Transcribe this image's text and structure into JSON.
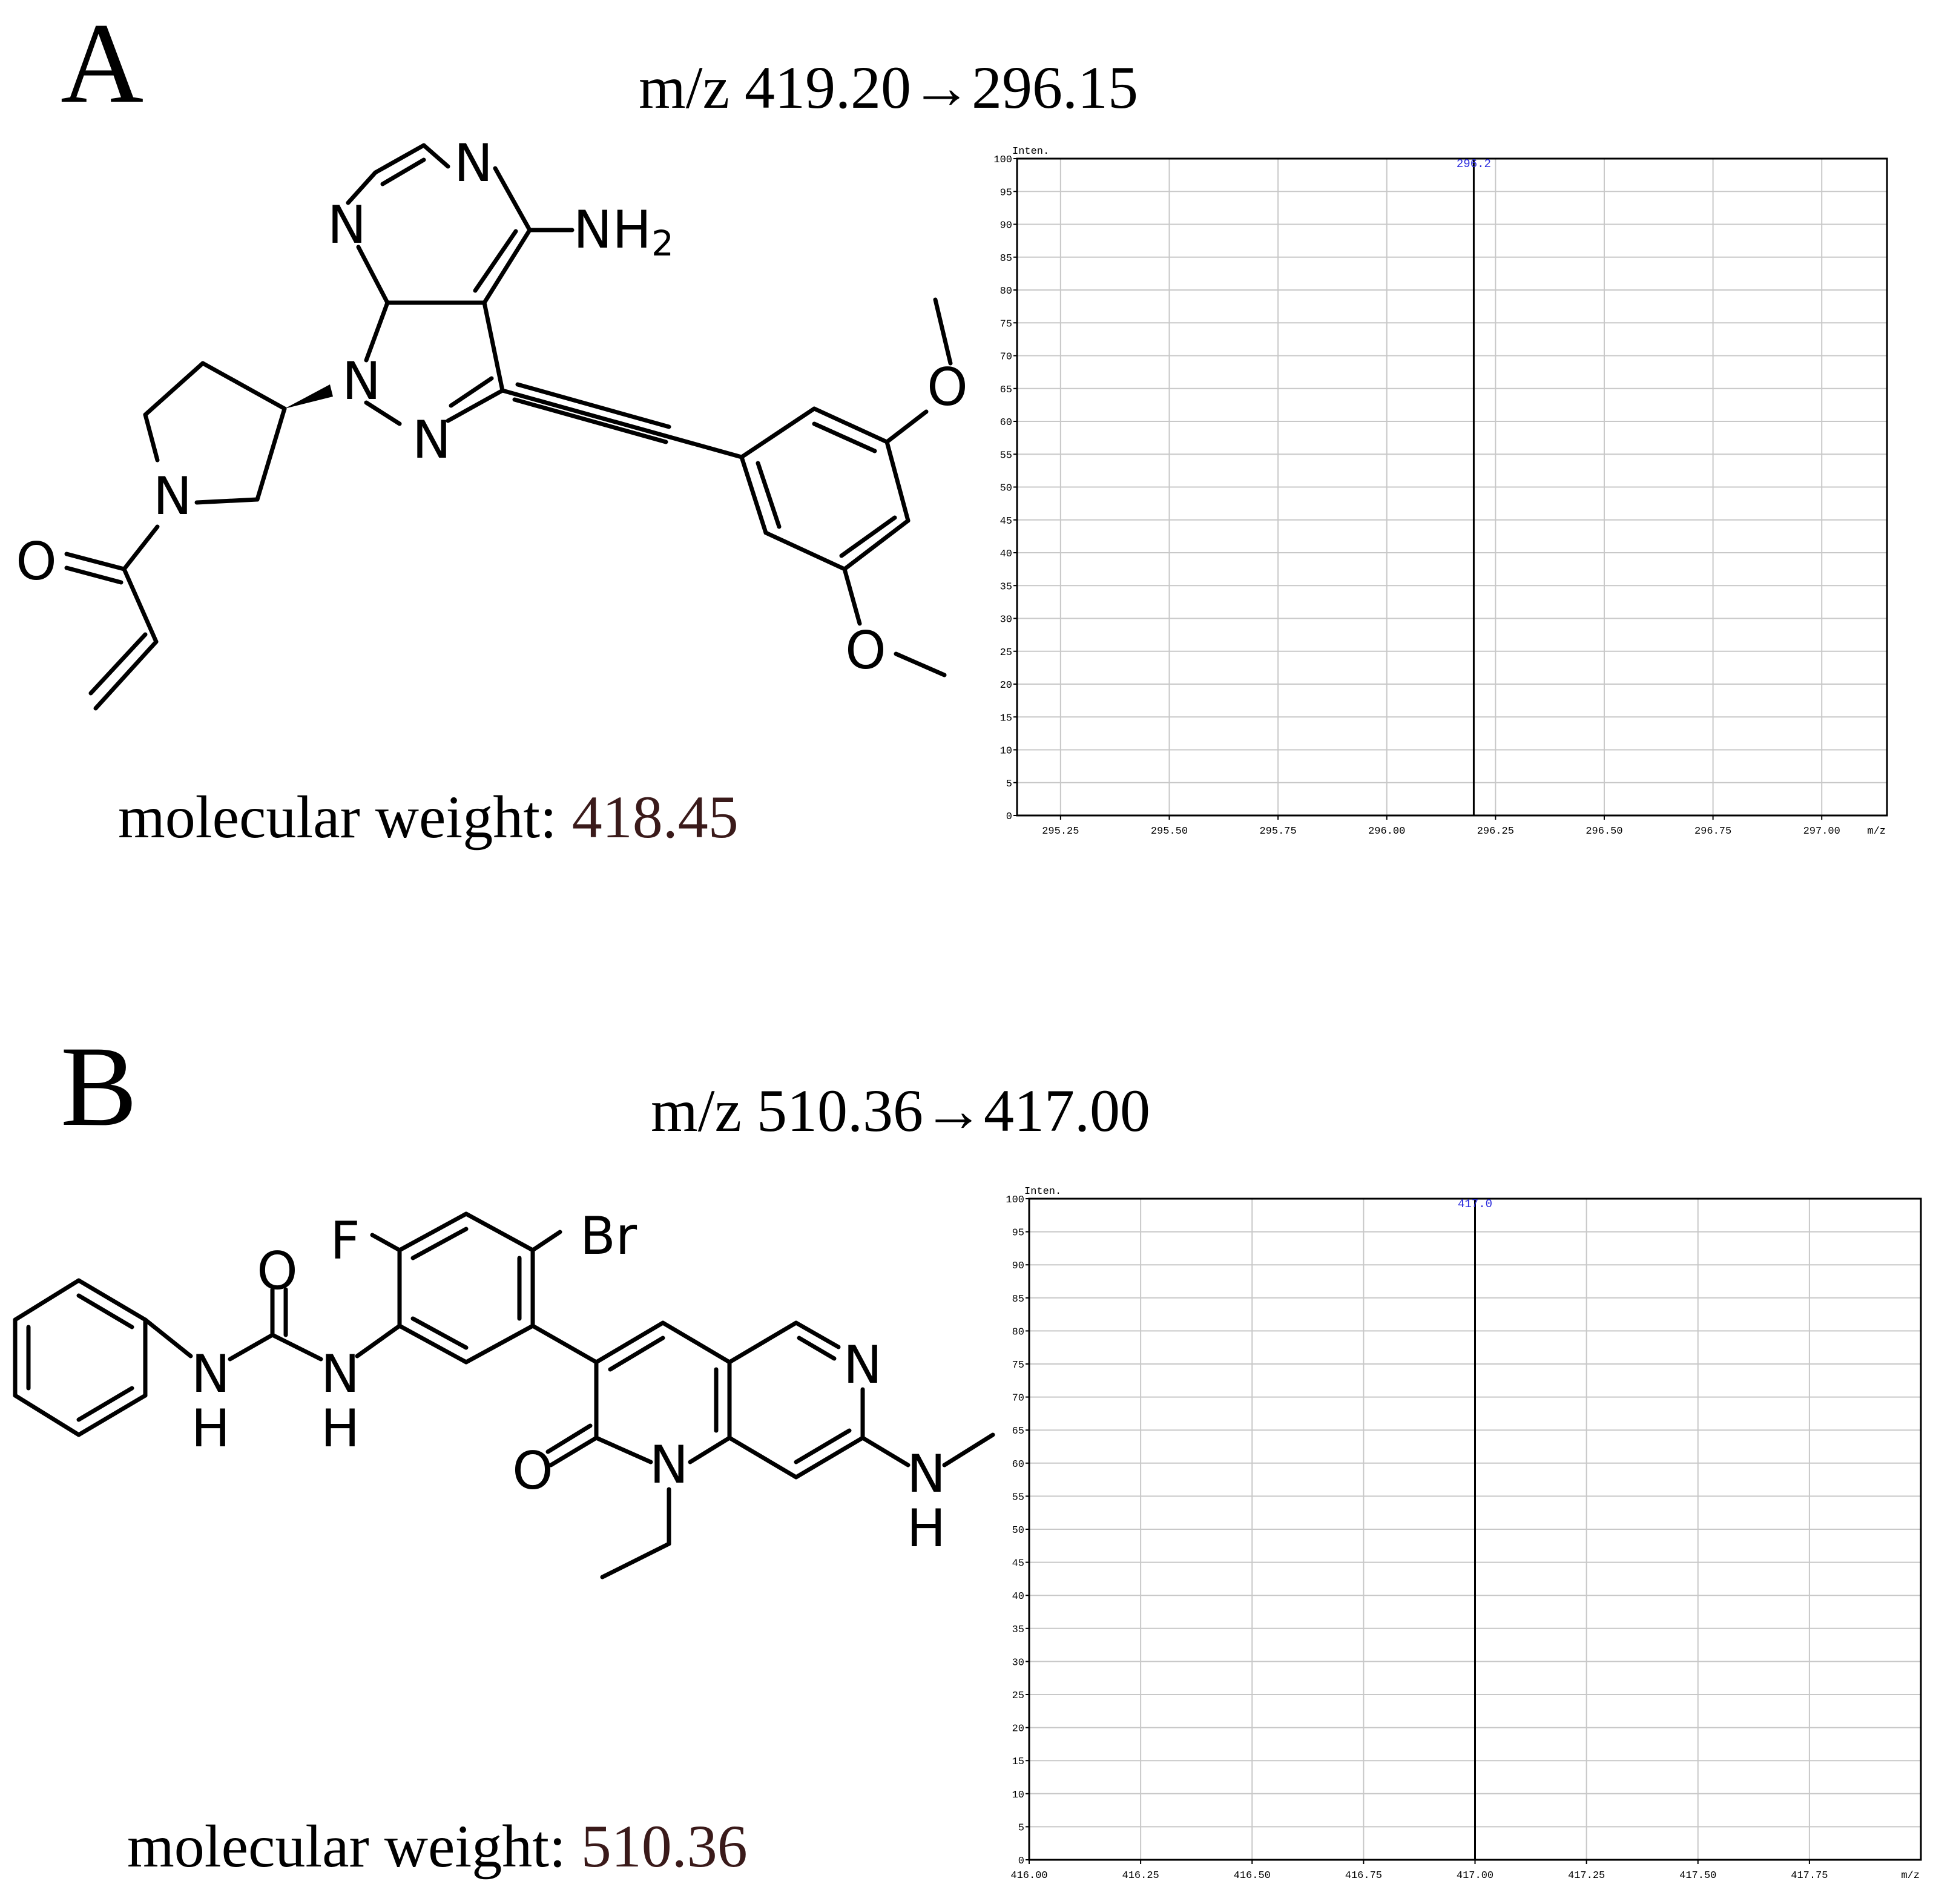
{
  "panels": [
    {
      "letter": "A",
      "transition": "m/z 419.20→296.15",
      "mw_label": "molecular weight: ",
      "mw_value": "418.45"
    },
    {
      "letter": "B",
      "transition": "m/z 510.36→417.00",
      "mw_label": "molecular weight: ",
      "mw_value": "510.36"
    }
  ],
  "chart_data": [
    {
      "type": "bar",
      "title": "",
      "xlabel": "m/z",
      "ylabel": "Inten.",
      "xlim": [
        295.15,
        297.15
      ],
      "ylim": [
        0,
        100
      ],
      "xticks": [
        "295.25",
        "295.50",
        "295.75",
        "296.00",
        "296.25",
        "296.50",
        "296.75",
        "297.00"
      ],
      "yticks": [
        "0",
        "5",
        "10",
        "15",
        "20",
        "25",
        "30",
        "35",
        "40",
        "45",
        "50",
        "55",
        "60",
        "65",
        "70",
        "75",
        "80",
        "85",
        "90",
        "95",
        "100"
      ],
      "grid": true,
      "peaks": [
        {
          "x": 296.2,
          "y": 100,
          "label": "296.2"
        }
      ]
    },
    {
      "type": "bar",
      "title": "",
      "xlabel": "m/z",
      "ylabel": "Inten.",
      "xlim": [
        416.0,
        418.0
      ],
      "ylim": [
        0,
        100
      ],
      "xticks": [
        "416.00",
        "416.25",
        "416.50",
        "416.75",
        "417.00",
        "417.25",
        "417.50",
        "417.75"
      ],
      "yticks": [
        "0",
        "5",
        "10",
        "15",
        "20",
        "25",
        "30",
        "35",
        "40",
        "45",
        "50",
        "55",
        "60",
        "65",
        "70",
        "75",
        "80",
        "85",
        "90",
        "95",
        "100"
      ],
      "grid": true,
      "peaks": [
        {
          "x": 417.0,
          "y": 100,
          "label": "417.0"
        }
      ]
    }
  ],
  "molecules": {
    "a": {
      "atoms": {
        "n1": "N",
        "n2": "N",
        "nh2": "NH",
        "nh2_sub": "2",
        "n9": "N",
        "n8": "N",
        "npyr": "N",
        "o_carbonyl": "O",
        "o_methoxy1": "O",
        "o_methoxy2": "O"
      }
    },
    "b": {
      "atoms": {
        "f": "F",
        "br": "Br",
        "o_urea": "O",
        "nh1": "N",
        "h1": "H",
        "nh2": "N",
        "h2": "H",
        "n_ring": "N",
        "n1": "N",
        "o_ketone": "O",
        "nh3": "N",
        "h3": "H"
      }
    }
  }
}
